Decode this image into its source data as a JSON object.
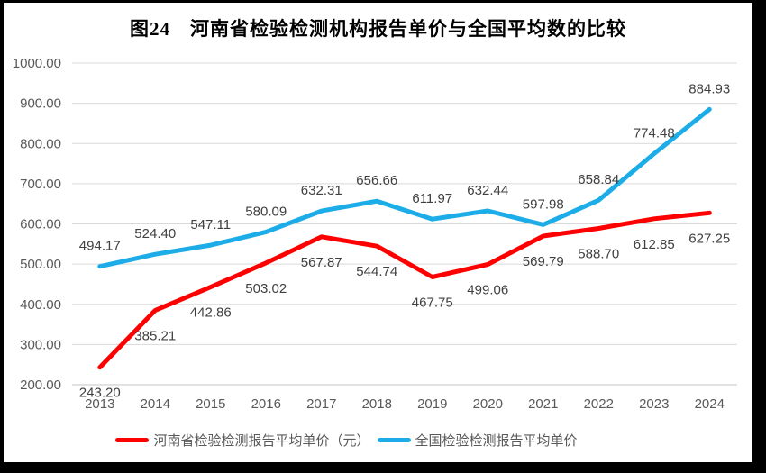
{
  "chart_data": {
    "type": "line",
    "title": "图24　河南省检验检测机构报告单价与全国平均数的比较",
    "categories": [
      "2013",
      "2014",
      "2015",
      "2016",
      "2017",
      "2018",
      "2019",
      "2020",
      "2021",
      "2022",
      "2023",
      "2024"
    ],
    "series": [
      {
        "name": "河南省检验检测报告平均单价（元）",
        "color": "#FF0000",
        "label_position": "below",
        "values": [
          243.2,
          385.21,
          442.86,
          503.02,
          567.87,
          544.74,
          467.75,
          499.06,
          569.79,
          588.7,
          612.85,
          627.25
        ]
      },
      {
        "name": "全国检验检测报告平均单价",
        "color": "#1CADE8",
        "label_position": "above",
        "values": [
          494.17,
          524.4,
          547.11,
          580.09,
          632.31,
          656.66,
          611.97,
          632.44,
          597.98,
          658.84,
          774.48,
          884.93
        ]
      }
    ],
    "ylim": [
      200,
      1000
    ],
    "ytick_step": 100,
    "ytick_labels": [
      "200.00",
      "300.00",
      "400.00",
      "500.00",
      "600.00",
      "700.00",
      "800.00",
      "900.00",
      "1000.00"
    ],
    "value_label_decimals": 2,
    "grid": "horizontal",
    "legend_position": "bottom",
    "colors": {
      "background": "#FFFFFF",
      "frame": "#000000",
      "grid": "#D9D9D9",
      "axis_line": "#C6C6C6",
      "tick_text": "#595959",
      "value_label_text": "#404040",
      "title_text": "#000000",
      "legend_text": "#595959"
    }
  }
}
